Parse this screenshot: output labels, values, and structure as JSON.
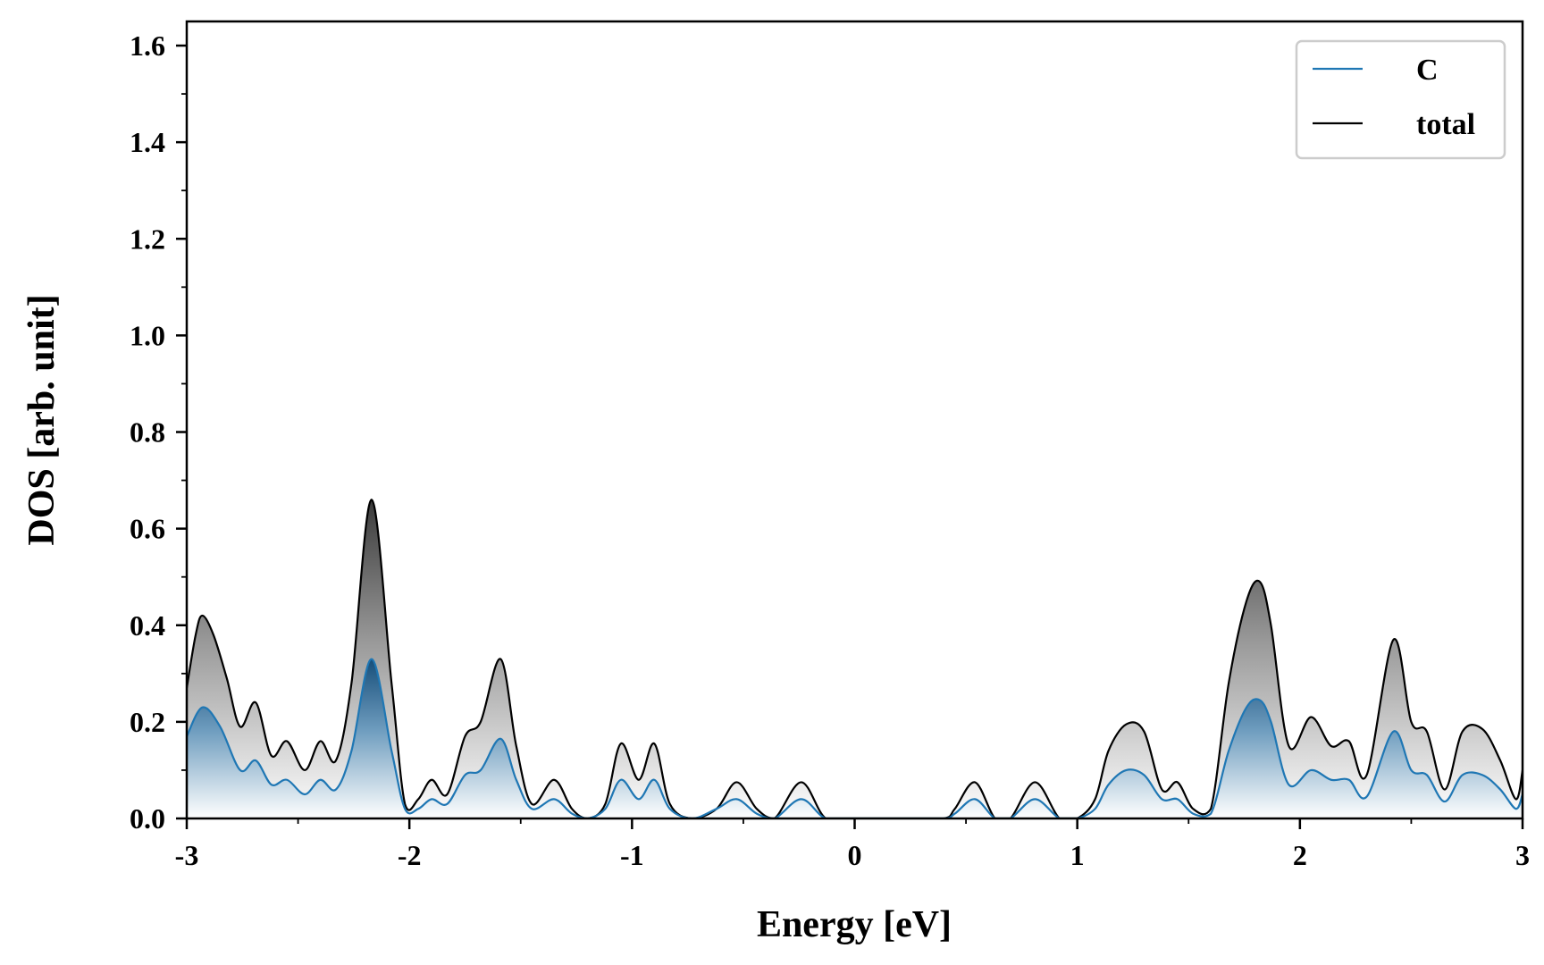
{
  "chart_data": {
    "type": "area",
    "xlabel": "Energy [eV]",
    "ylabel": "DOS [arb. unit]",
    "xlim": [
      -3,
      3
    ],
    "ylim": [
      0,
      1.65
    ],
    "x_ticks": [
      "-3",
      "-2",
      "-1",
      "0",
      "1",
      "2",
      "3"
    ],
    "y_ticks": [
      "0.0",
      "0.2",
      "0.4",
      "0.6",
      "0.8",
      "1.0",
      "1.2",
      "1.4",
      "1.6"
    ],
    "legend_position": "top-right",
    "grid": false,
    "series": [
      {
        "name": "C",
        "color": "#1f77b4",
        "fill": "gradient-blue",
        "x": [
          -3.0,
          -2.93,
          -2.85,
          -2.76,
          -2.69,
          -2.62,
          -2.55,
          -2.47,
          -2.4,
          -2.33,
          -2.26,
          -2.17,
          -2.08,
          -2.02,
          -1.96,
          -1.9,
          -1.83,
          -1.75,
          -1.68,
          -1.59,
          -1.52,
          -1.45,
          -1.35,
          -1.27,
          -1.2,
          -1.12,
          -1.05,
          -0.97,
          -0.9,
          -0.83,
          -0.73,
          -0.62,
          -0.53,
          -0.44,
          -0.36,
          -0.24,
          -0.13,
          0.0,
          0.2,
          0.4,
          0.45,
          0.54,
          0.63,
          0.7,
          0.81,
          0.92,
          1.0,
          1.08,
          1.14,
          1.22,
          1.3,
          1.38,
          1.45,
          1.52,
          1.6,
          1.68,
          1.76,
          1.82,
          1.87,
          1.95,
          2.05,
          2.14,
          2.22,
          2.3,
          2.42,
          2.5,
          2.57,
          2.65,
          2.73,
          2.82,
          2.9,
          2.97,
          3.0
        ],
        "values": [
          0.17,
          0.23,
          0.19,
          0.1,
          0.12,
          0.07,
          0.08,
          0.05,
          0.08,
          0.06,
          0.14,
          0.33,
          0.14,
          0.02,
          0.02,
          0.04,
          0.03,
          0.09,
          0.1,
          0.165,
          0.08,
          0.02,
          0.04,
          0.01,
          0.0,
          0.02,
          0.08,
          0.04,
          0.08,
          0.02,
          0.0,
          0.02,
          0.04,
          0.01,
          0.0,
          0.04,
          0.0,
          0.0,
          0.0,
          0.0,
          0.01,
          0.04,
          0.0,
          0.0,
          0.04,
          0.0,
          0.0,
          0.02,
          0.07,
          0.1,
          0.09,
          0.04,
          0.04,
          0.01,
          0.01,
          0.14,
          0.23,
          0.245,
          0.2,
          0.07,
          0.1,
          0.08,
          0.08,
          0.045,
          0.18,
          0.1,
          0.09,
          0.035,
          0.09,
          0.09,
          0.06,
          0.02,
          0.05
        ]
      },
      {
        "name": "total",
        "color": "#000000",
        "fill": "gradient-gray",
        "x": [
          -3.0,
          -2.96,
          -2.93,
          -2.88,
          -2.82,
          -2.76,
          -2.69,
          -2.62,
          -2.55,
          -2.47,
          -2.4,
          -2.33,
          -2.26,
          -2.17,
          -2.08,
          -2.02,
          -1.96,
          -1.9,
          -1.83,
          -1.75,
          -1.68,
          -1.59,
          -1.52,
          -1.45,
          -1.35,
          -1.27,
          -1.2,
          -1.12,
          -1.05,
          -0.97,
          -0.9,
          -0.83,
          -0.73,
          -0.62,
          -0.53,
          -0.44,
          -0.36,
          -0.24,
          -0.13,
          0.0,
          0.2,
          0.4,
          0.45,
          0.54,
          0.63,
          0.7,
          0.81,
          0.92,
          1.0,
          1.08,
          1.14,
          1.22,
          1.3,
          1.38,
          1.45,
          1.52,
          1.6,
          1.68,
          1.76,
          1.82,
          1.87,
          1.95,
          2.05,
          2.14,
          2.22,
          2.3,
          2.42,
          2.5,
          2.57,
          2.65,
          2.73,
          2.82,
          2.9,
          2.97,
          3.0
        ],
        "values": [
          0.27,
          0.38,
          0.42,
          0.38,
          0.29,
          0.19,
          0.24,
          0.13,
          0.16,
          0.1,
          0.16,
          0.12,
          0.28,
          0.66,
          0.28,
          0.03,
          0.04,
          0.08,
          0.05,
          0.17,
          0.2,
          0.33,
          0.15,
          0.03,
          0.08,
          0.02,
          0.0,
          0.03,
          0.155,
          0.08,
          0.155,
          0.03,
          0.0,
          0.02,
          0.075,
          0.02,
          0.0,
          0.075,
          0.0,
          0.0,
          0.0,
          0.0,
          0.02,
          0.075,
          0.0,
          0.0,
          0.075,
          0.0,
          0.0,
          0.04,
          0.14,
          0.195,
          0.18,
          0.06,
          0.075,
          0.02,
          0.02,
          0.28,
          0.45,
          0.49,
          0.4,
          0.15,
          0.21,
          0.15,
          0.16,
          0.09,
          0.37,
          0.2,
          0.18,
          0.06,
          0.18,
          0.185,
          0.12,
          0.04,
          0.1
        ]
      }
    ]
  }
}
